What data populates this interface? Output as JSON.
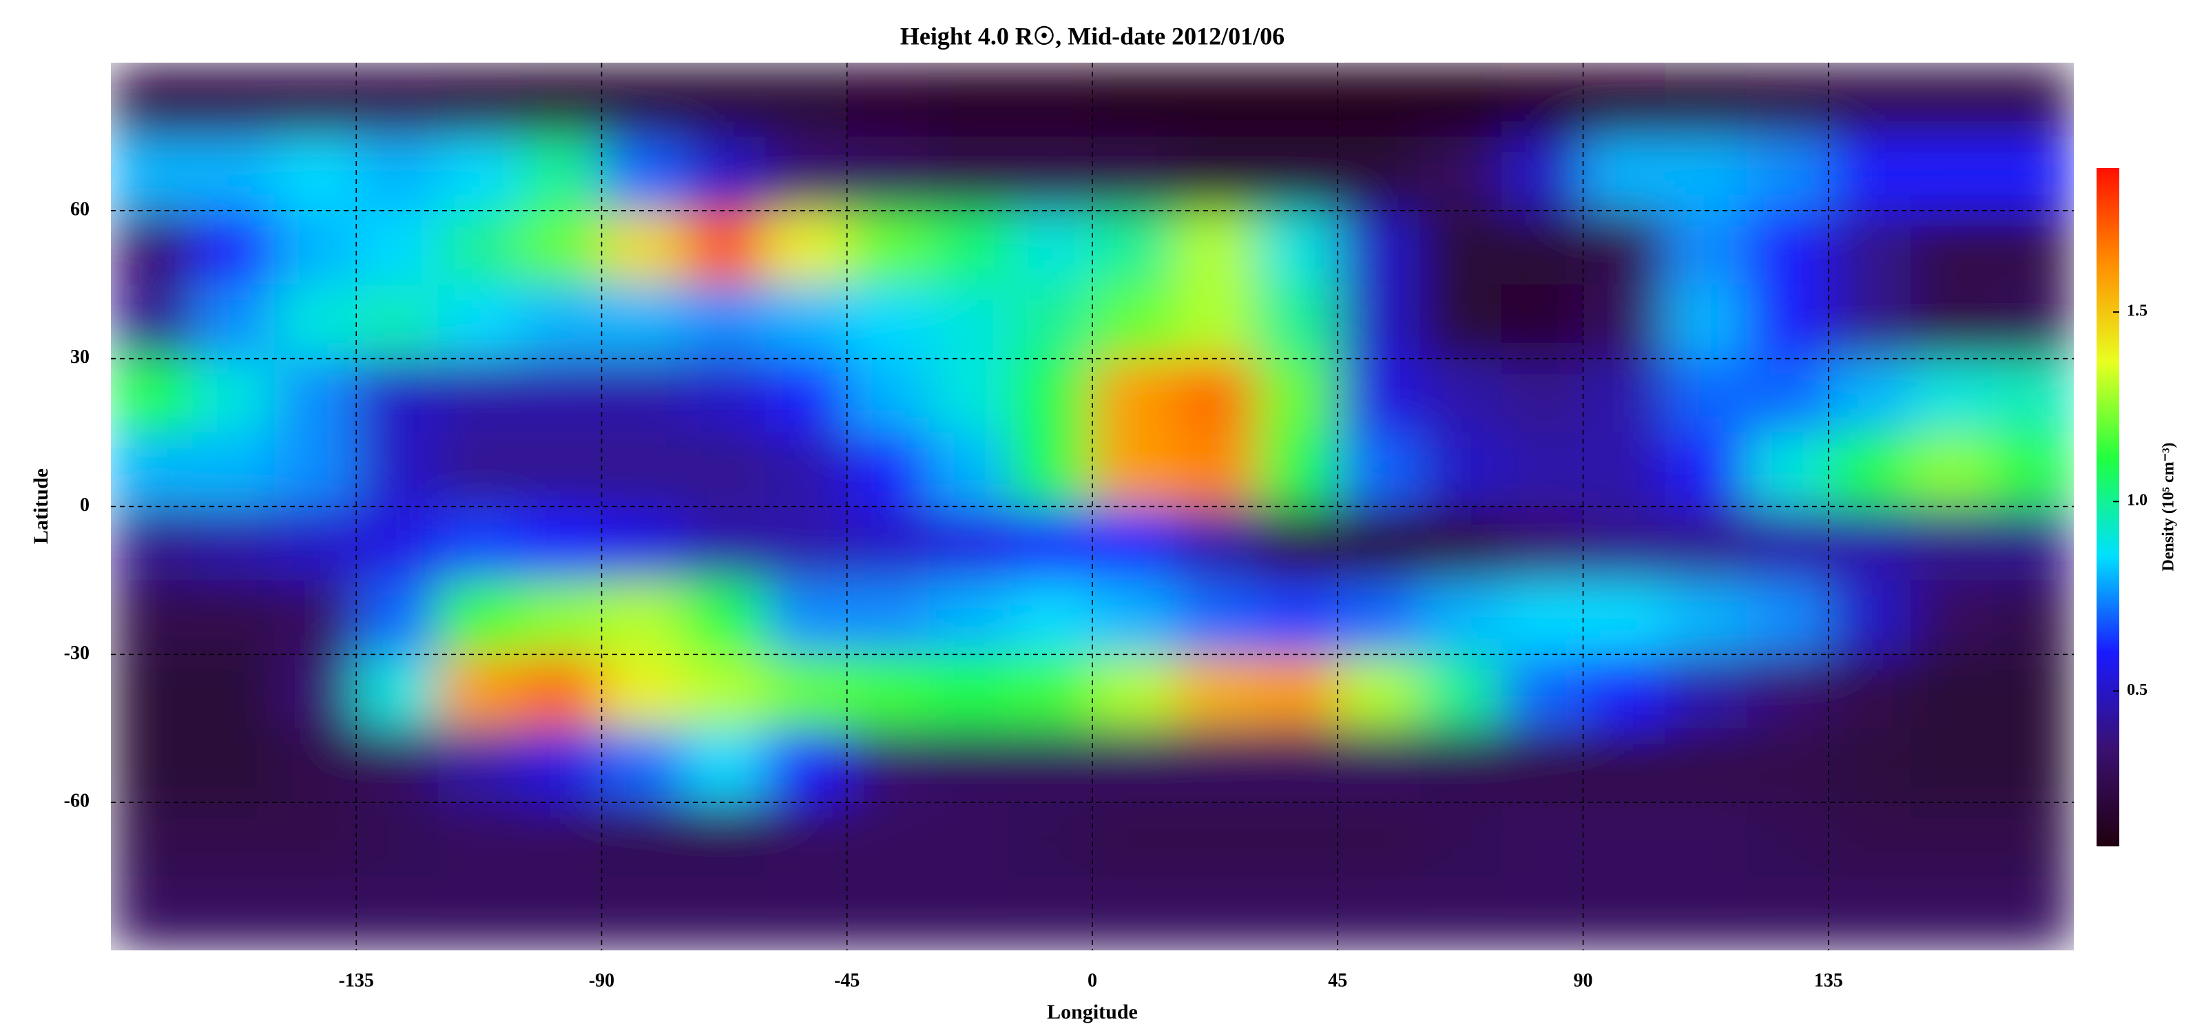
{
  "chart_data": {
    "type": "heatmap",
    "title": "Height 4.0 R☉, Mid-date 2012/01/06",
    "x_label": "Longitude",
    "y_label": "Latitude",
    "colorbar_label": "Density (10⁵ cm⁻³)",
    "xlim": [
      -180,
      180
    ],
    "xticks": [
      -135,
      -90,
      -45,
      0,
      45,
      90,
      135
    ],
    "ylim": [
      -90,
      90
    ],
    "yticks": [
      -60,
      -30,
      0,
      30,
      60
    ],
    "clim": [
      0.09,
      1.88
    ],
    "cticks": [
      0.5,
      {
        "value": 1,
        "label": "1.0"
      },
      1.5
    ],
    "colormap": [
      "#200010",
      "#3a1070",
      "#1a1aff",
      "#00e0ff",
      "#20ff40",
      "#e8ff20",
      "#ff9000",
      "#ff1000"
    ],
    "grid": true,
    "x": [
      -172.5,
      -157.5,
      -142.5,
      -127.5,
      -112.5,
      -97.5,
      -82.5,
      -67.5,
      -52.5,
      -37.5,
      -22.5,
      -7.5,
      7.5,
      22.5,
      37.5,
      52.5,
      67.5,
      82.5,
      97.5,
      112.5,
      127.5,
      142.5,
      157.5,
      172.5
    ],
    "y": [
      82.5,
      67.5,
      52.5,
      37.5,
      22.5,
      7.5,
      -7.5,
      -22.5,
      -37.5,
      -52.5,
      -67.5,
      -82.5
    ],
    "z": [
      [
        0.25,
        0.25,
        0.25,
        0.25,
        0.22,
        0.2,
        0.2,
        0.2,
        0.2,
        0.18,
        0.15,
        0.15,
        0.12,
        0.12,
        0.12,
        0.12,
        0.12,
        0.15,
        0.18,
        0.2,
        0.22,
        0.25,
        0.25,
        0.25
      ],
      [
        0.8,
        0.8,
        0.85,
        0.8,
        0.85,
        1.0,
        0.7,
        0.5,
        0.35,
        0.3,
        0.25,
        0.25,
        0.25,
        0.2,
        0.2,
        0.2,
        0.3,
        0.5,
        0.8,
        0.8,
        0.75,
        0.6,
        0.6,
        0.6
      ],
      [
        0.35,
        0.6,
        0.8,
        0.85,
        1.0,
        1.2,
        1.45,
        1.75,
        1.4,
        1.2,
        1.05,
        0.9,
        1.0,
        1.3,
        0.9,
        0.5,
        0.2,
        0.2,
        0.25,
        0.75,
        0.6,
        0.4,
        0.25,
        0.25
      ],
      [
        0.4,
        0.75,
        0.9,
        0.95,
        0.85,
        0.8,
        0.8,
        0.75,
        0.8,
        0.85,
        0.9,
        1.0,
        1.2,
        1.3,
        1.0,
        0.5,
        0.2,
        0.18,
        0.3,
        0.8,
        0.6,
        0.4,
        0.25,
        0.28
      ],
      [
        1.1,
        0.9,
        0.75,
        0.5,
        0.45,
        0.45,
        0.45,
        0.5,
        0.6,
        0.8,
        0.9,
        1.1,
        1.6,
        1.7,
        1.2,
        0.55,
        0.45,
        0.4,
        0.45,
        0.7,
        0.7,
        0.8,
        0.9,
        0.95
      ],
      [
        0.8,
        0.8,
        0.75,
        0.5,
        0.4,
        0.4,
        0.4,
        0.4,
        0.45,
        0.6,
        0.8,
        1.1,
        1.6,
        1.65,
        1.1,
        0.7,
        0.5,
        0.45,
        0.45,
        0.6,
        0.9,
        1.1,
        1.25,
        1.1
      ],
      [
        0.4,
        0.45,
        0.5,
        0.55,
        0.65,
        0.6,
        0.55,
        0.45,
        0.45,
        0.5,
        0.55,
        0.6,
        0.6,
        0.45,
        0.25,
        0.2,
        0.22,
        0.35,
        0.4,
        0.4,
        0.45,
        0.45,
        0.4,
        0.4
      ],
      [
        0.25,
        0.25,
        0.3,
        0.7,
        1.15,
        1.25,
        1.3,
        1.1,
        0.75,
        0.75,
        0.8,
        0.85,
        0.8,
        0.7,
        0.65,
        0.7,
        0.8,
        0.85,
        0.85,
        0.8,
        0.75,
        0.5,
        0.3,
        0.25
      ],
      [
        0.2,
        0.2,
        0.35,
        0.9,
        1.6,
        1.7,
        1.4,
        1.3,
        1.2,
        1.15,
        1.1,
        1.15,
        1.3,
        1.55,
        1.6,
        1.3,
        1.0,
        0.7,
        0.6,
        0.45,
        0.35,
        0.25,
        0.2,
        0.2
      ],
      [
        0.2,
        0.2,
        0.25,
        0.3,
        0.45,
        0.55,
        0.7,
        0.85,
        0.6,
        0.35,
        0.3,
        0.3,
        0.3,
        0.3,
        0.3,
        0.3,
        0.28,
        0.25,
        0.25,
        0.25,
        0.25,
        0.22,
        0.2,
        0.2
      ],
      [
        0.25,
        0.25,
        0.25,
        0.28,
        0.3,
        0.3,
        0.28,
        0.28,
        0.3,
        0.3,
        0.3,
        0.28,
        0.25,
        0.25,
        0.25,
        0.25,
        0.28,
        0.3,
        0.3,
        0.3,
        0.28,
        0.25,
        0.25,
        0.25
      ],
      [
        0.3,
        0.3,
        0.3,
        0.3,
        0.3,
        0.3,
        0.3,
        0.3,
        0.3,
        0.3,
        0.3,
        0.3,
        0.3,
        0.3,
        0.3,
        0.3,
        0.3,
        0.3,
        0.3,
        0.3,
        0.3,
        0.3,
        0.3,
        0.3
      ]
    ]
  }
}
